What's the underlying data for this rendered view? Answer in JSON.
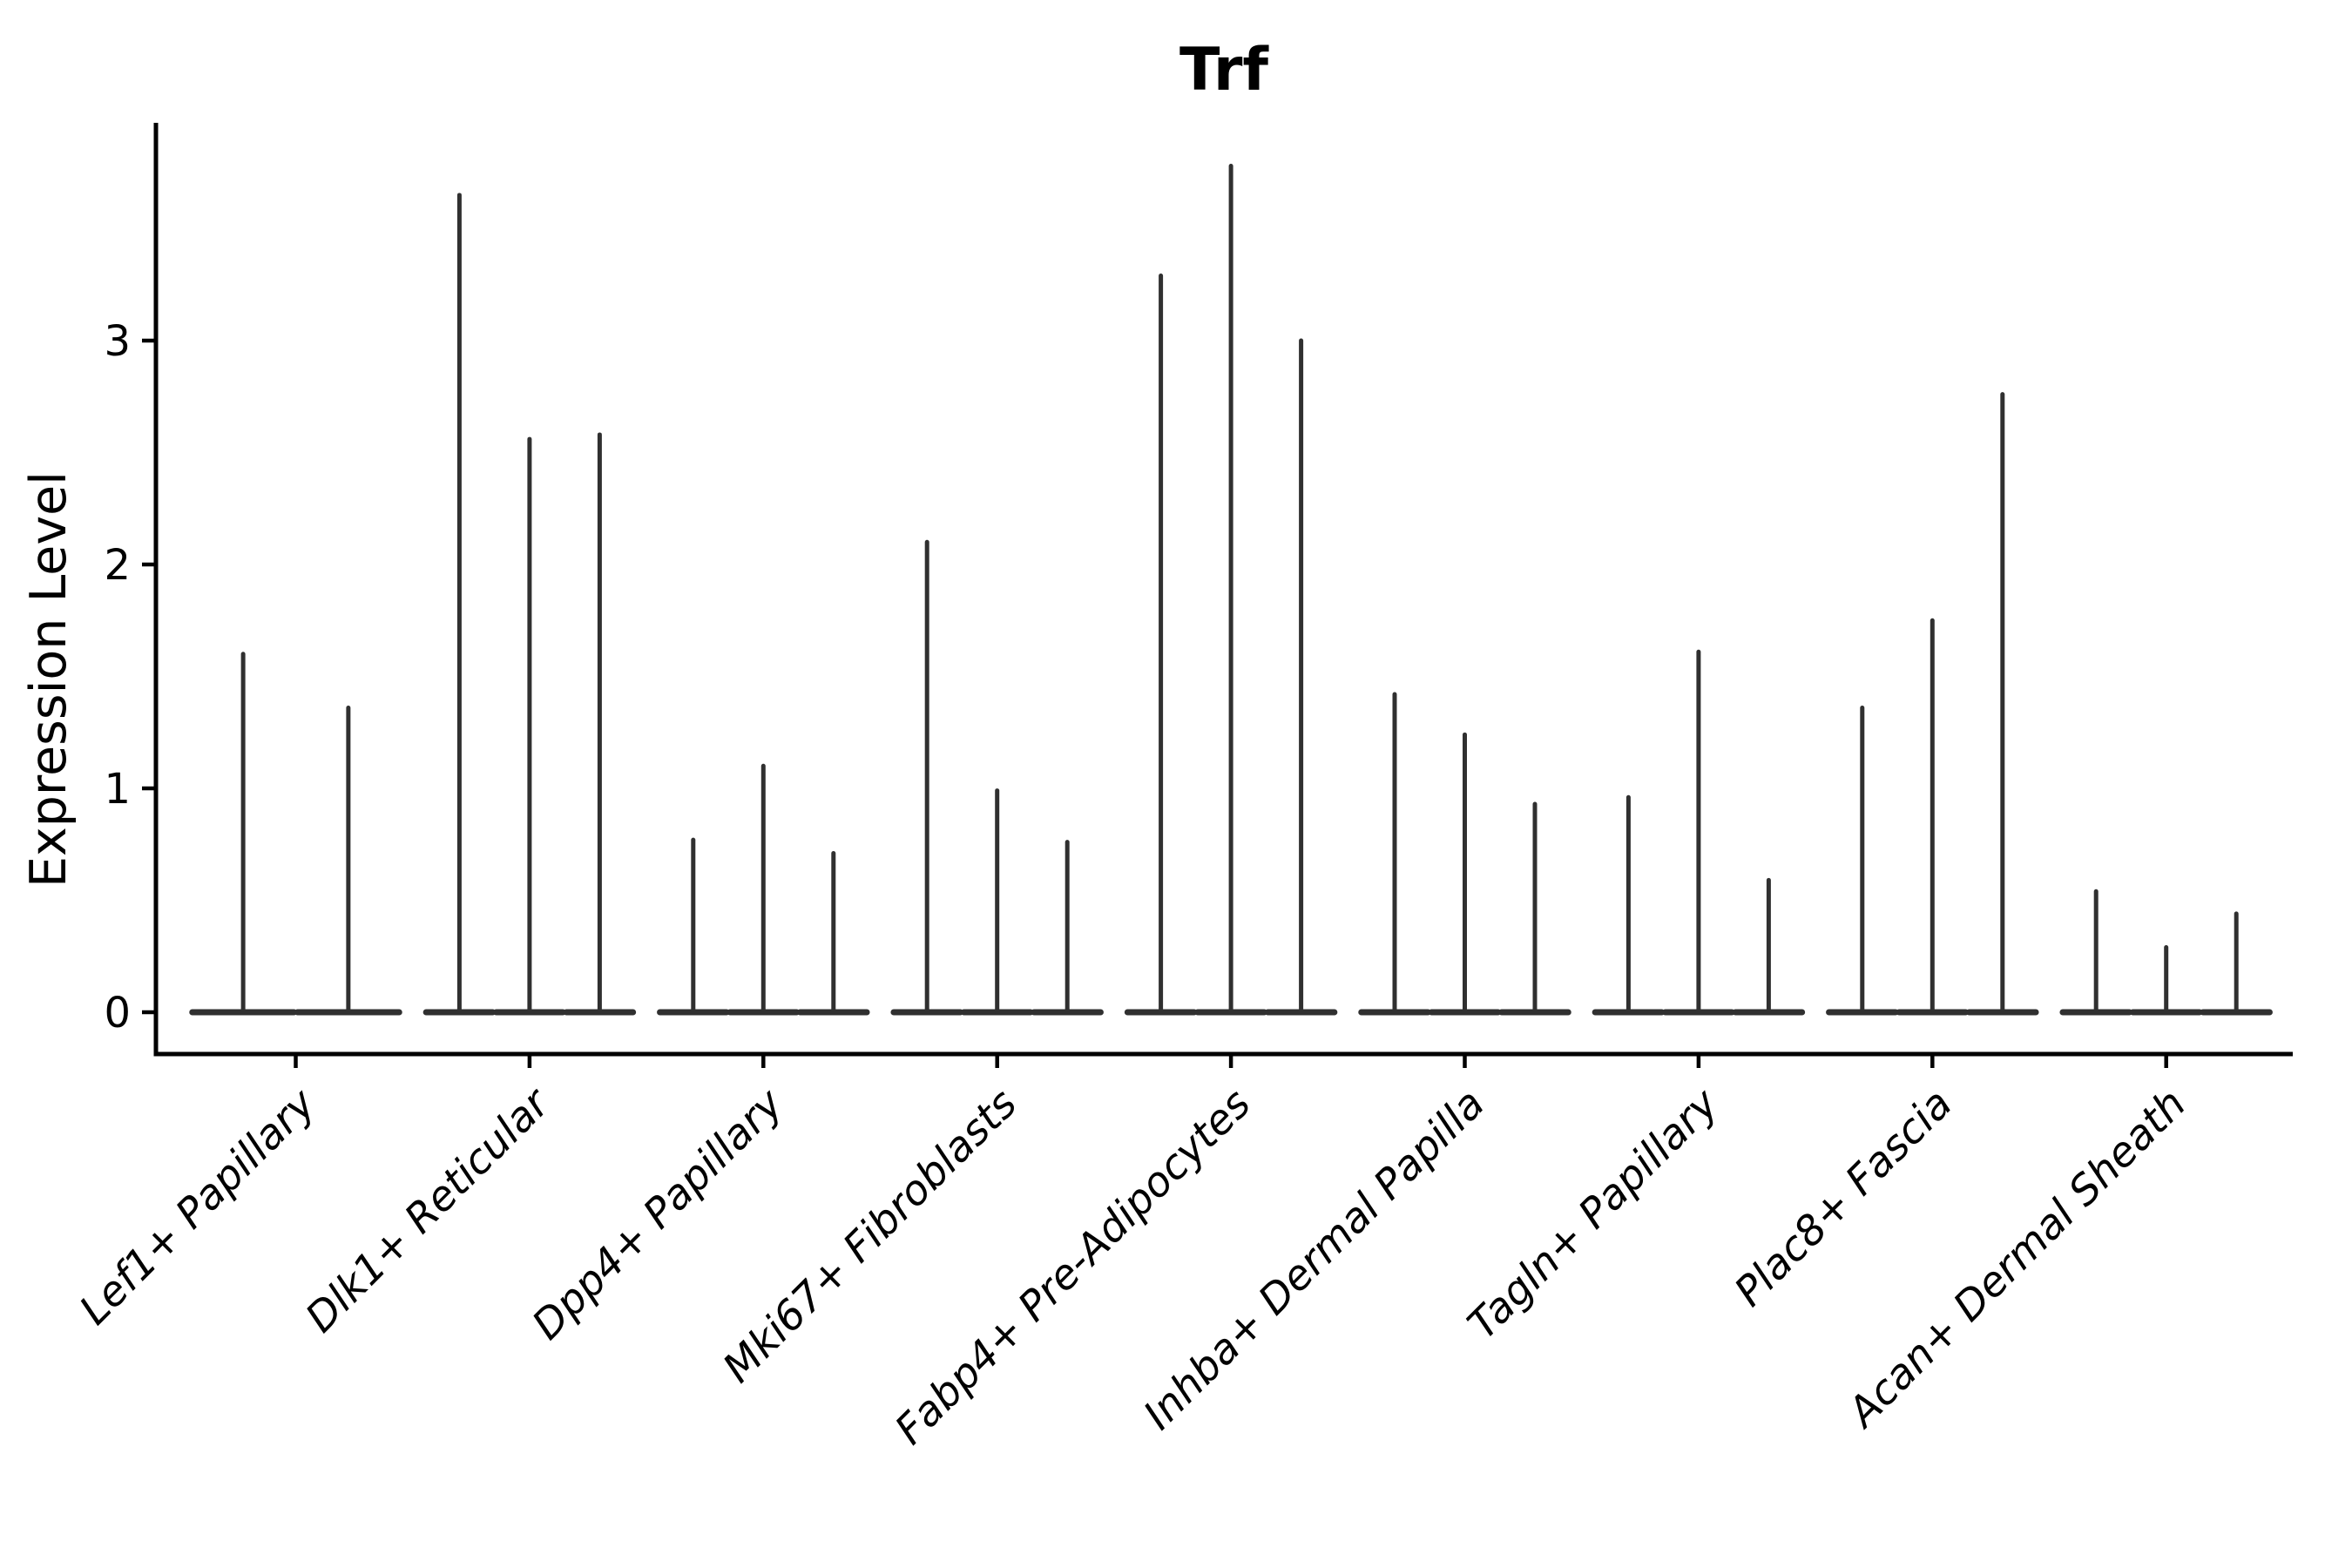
{
  "figure": {
    "title": "Trf",
    "ylabel": "Expression Level",
    "background_color": "#ffffff",
    "axis_color": "#000000",
    "violin_color": "#303030"
  },
  "chart_data": {
    "type": "violin",
    "title": "Trf",
    "xlabel": "",
    "ylabel": "Expression Level",
    "yticks": [
      0,
      1,
      2,
      3
    ],
    "ylim": [
      -0.19,
      3.97
    ],
    "grid": false,
    "legend_position": "none",
    "tick_label_style": "italic, rotated 45deg",
    "categories": [
      "Lef1+ Papillary",
      "Dlk1+ Reticular",
      "Dpp4+ Papillary",
      "Mki67+ Fibroblasts",
      "Fabp4+ Pre-Adipocytes",
      "Inhba+ Dermal Papilla",
      "Tagln+ Papillary",
      "Plac8+ Fascia",
      "Acan+ Dermal Sheath"
    ],
    "groups": [
      {
        "category": "Lef1+ Papillary",
        "spike_maxima": [
          1.6,
          1.36
        ]
      },
      {
        "category": "Dlk1+ Reticular",
        "spike_maxima": [
          3.65,
          2.56,
          2.58
        ]
      },
      {
        "category": "Dpp4+ Papillary",
        "spike_maxima": [
          0.77,
          1.1,
          0.71
        ]
      },
      {
        "category": "Mki67+ Fibroblasts",
        "spike_maxima": [
          2.1,
          0.99,
          0.76
        ]
      },
      {
        "category": "Fabp4+ Pre-Adipocytes",
        "spike_maxima": [
          3.29,
          3.78,
          3.0
        ]
      },
      {
        "category": "Inhba+ Dermal Papilla",
        "spike_maxima": [
          1.42,
          1.24,
          0.93
        ]
      },
      {
        "category": "Tagln+ Papillary",
        "spike_maxima": [
          0.96,
          1.61,
          0.59
        ]
      },
      {
        "category": "Plac8+ Fascia",
        "spike_maxima": [
          1.36,
          1.75,
          2.76
        ]
      },
      {
        "category": "Acan+ Dermal Sheath",
        "spike_maxima": [
          0.54,
          0.29,
          0.44
        ]
      }
    ]
  }
}
